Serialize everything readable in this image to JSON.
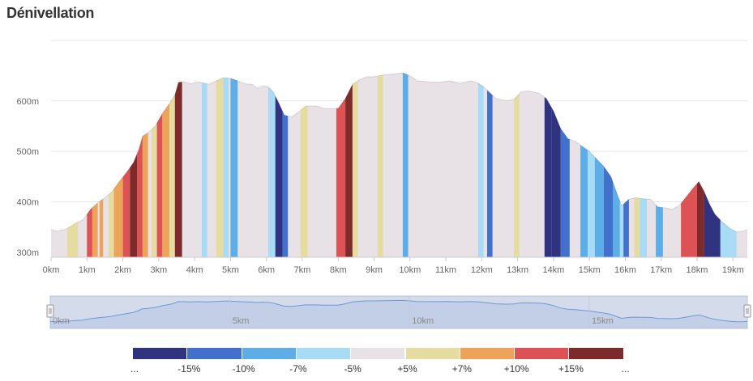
{
  "title": "Dénivellation",
  "chart_data": {
    "type": "area",
    "title": "Dénivellation",
    "xlabel": "",
    "ylabel": "",
    "xlim": [
      0,
      19.4
    ],
    "ylim": [
      290,
      720
    ],
    "yticks": [
      {
        "value": 300,
        "label": "300m"
      },
      {
        "value": 400,
        "label": "400m"
      },
      {
        "value": 500,
        "label": "500m"
      },
      {
        "value": 600,
        "label": "600m"
      }
    ],
    "xticks": [
      {
        "value": 0,
        "label": "0km"
      },
      {
        "value": 1,
        "label": "1km"
      },
      {
        "value": 2,
        "label": "2km"
      },
      {
        "value": 3,
        "label": "3km"
      },
      {
        "value": 4,
        "label": "4km"
      },
      {
        "value": 5,
        "label": "5km"
      },
      {
        "value": 6,
        "label": "6km"
      },
      {
        "value": 7,
        "label": "7km"
      },
      {
        "value": 8,
        "label": "8km"
      },
      {
        "value": 9,
        "label": "9km"
      },
      {
        "value": 10,
        "label": "10km"
      },
      {
        "value": 11,
        "label": "11km"
      },
      {
        "value": 12,
        "label": "12km"
      },
      {
        "value": 13,
        "label": "13km"
      },
      {
        "value": 14,
        "label": "14km"
      },
      {
        "value": 15,
        "label": "15km"
      },
      {
        "value": 16,
        "label": "16km"
      },
      {
        "value": 17,
        "label": "17km"
      },
      {
        "value": 18,
        "label": "18km"
      },
      {
        "value": 19,
        "label": "19km"
      }
    ],
    "grid": true,
    "profile": [
      [
        0,
        345
      ],
      [
        0.15,
        342
      ],
      [
        0.4,
        345
      ],
      [
        0.7,
        358
      ],
      [
        0.9,
        365
      ],
      [
        1.1,
        385
      ],
      [
        1.3,
        398
      ],
      [
        1.5,
        408
      ],
      [
        1.7,
        420
      ],
      [
        1.9,
        440
      ],
      [
        2.1,
        458
      ],
      [
        2.3,
        478
      ],
      [
        2.45,
        505
      ],
      [
        2.55,
        530
      ],
      [
        2.7,
        537
      ],
      [
        2.9,
        550
      ],
      [
        3.1,
        575
      ],
      [
        3.3,
        595
      ],
      [
        3.45,
        612
      ],
      [
        3.55,
        637
      ],
      [
        3.7,
        638
      ],
      [
        3.9,
        634
      ],
      [
        4.1,
        638
      ],
      [
        4.4,
        633
      ],
      [
        4.6,
        640
      ],
      [
        4.8,
        646
      ],
      [
        5.0,
        645
      ],
      [
        5.2,
        640
      ],
      [
        5.4,
        634
      ],
      [
        5.6,
        633
      ],
      [
        5.75,
        625
      ],
      [
        5.9,
        630
      ],
      [
        6.05,
        628
      ],
      [
        6.2,
        617
      ],
      [
        6.35,
        595
      ],
      [
        6.5,
        572
      ],
      [
        6.7,
        568
      ],
      [
        6.9,
        578
      ],
      [
        7.1,
        590
      ],
      [
        7.4,
        590
      ],
      [
        7.6,
        585
      ],
      [
        7.8,
        585
      ],
      [
        8.0,
        585
      ],
      [
        8.2,
        605
      ],
      [
        8.4,
        633
      ],
      [
        8.6,
        642
      ],
      [
        8.8,
        648
      ],
      [
        9.0,
        648
      ],
      [
        9.3,
        652
      ],
      [
        9.6,
        654
      ],
      [
        9.8,
        656
      ],
      [
        10.0,
        650
      ],
      [
        10.2,
        640
      ],
      [
        10.5,
        638
      ],
      [
        10.8,
        637
      ],
      [
        11.1,
        640
      ],
      [
        11.4,
        635
      ],
      [
        11.7,
        640
      ],
      [
        11.9,
        635
      ],
      [
        12.05,
        628
      ],
      [
        12.2,
        618
      ],
      [
        12.4,
        605
      ],
      [
        12.7,
        600
      ],
      [
        12.9,
        603
      ],
      [
        13.1,
        618
      ],
      [
        13.3,
        620
      ],
      [
        13.6,
        615
      ],
      [
        13.8,
        605
      ],
      [
        14.0,
        580
      ],
      [
        14.2,
        545
      ],
      [
        14.4,
        525
      ],
      [
        14.6,
        520
      ],
      [
        14.8,
        510
      ],
      [
        15.0,
        500
      ],
      [
        15.2,
        485
      ],
      [
        15.4,
        470
      ],
      [
        15.6,
        450
      ],
      [
        15.75,
        420
      ],
      [
        15.9,
        392
      ],
      [
        16.1,
        405
      ],
      [
        16.3,
        408
      ],
      [
        16.5,
        406
      ],
      [
        16.7,
        405
      ],
      [
        16.9,
        390
      ],
      [
        17.1,
        388
      ],
      [
        17.3,
        385
      ],
      [
        17.5,
        392
      ],
      [
        17.7,
        410
      ],
      [
        17.9,
        428
      ],
      [
        18.05,
        440
      ],
      [
        18.2,
        420
      ],
      [
        18.35,
        395
      ],
      [
        18.5,
        375
      ],
      [
        18.7,
        360
      ],
      [
        18.9,
        348
      ],
      [
        19.1,
        340
      ],
      [
        19.3,
        342
      ],
      [
        19.4,
        345
      ]
    ],
    "grade_segments": [
      [
        0.45,
        0.75,
        5
      ],
      [
        1.0,
        1.15,
        10
      ],
      [
        1.15,
        1.3,
        7
      ],
      [
        1.35,
        1.45,
        7
      ],
      [
        1.6,
        1.75,
        5
      ],
      [
        1.75,
        2.0,
        7
      ],
      [
        2.0,
        2.2,
        10
      ],
      [
        2.2,
        2.4,
        15
      ],
      [
        2.4,
        2.55,
        10
      ],
      [
        2.55,
        2.7,
        7
      ],
      [
        2.8,
        2.95,
        5
      ],
      [
        2.95,
        3.1,
        10
      ],
      [
        3.1,
        3.3,
        7
      ],
      [
        3.3,
        3.45,
        5
      ],
      [
        3.45,
        3.65,
        15
      ],
      [
        4.2,
        4.35,
        -5
      ],
      [
        4.6,
        4.8,
        5
      ],
      [
        4.8,
        4.95,
        -5
      ],
      [
        5.0,
        5.2,
        -7
      ],
      [
        6.05,
        6.25,
        -5
      ],
      [
        6.25,
        6.45,
        -15
      ],
      [
        6.45,
        6.6,
        -10
      ],
      [
        6.95,
        7.15,
        5
      ],
      [
        7.95,
        8.2,
        10
      ],
      [
        8.2,
        8.4,
        15
      ],
      [
        8.4,
        8.55,
        5
      ],
      [
        9.1,
        9.25,
        5
      ],
      [
        9.8,
        9.95,
        -7
      ],
      [
        11.9,
        12.05,
        -5
      ],
      [
        12.15,
        12.3,
        -10
      ],
      [
        12.9,
        13.05,
        5
      ],
      [
        13.75,
        13.95,
        -15
      ],
      [
        13.95,
        14.2,
        -15
      ],
      [
        14.2,
        14.45,
        -10
      ],
      [
        14.75,
        14.95,
        -7
      ],
      [
        14.95,
        15.15,
        -5
      ],
      [
        15.15,
        15.4,
        -7
      ],
      [
        15.4,
        15.65,
        -10
      ],
      [
        15.65,
        15.85,
        -7
      ],
      [
        15.85,
        15.95,
        -5
      ],
      [
        15.95,
        16.1,
        -10
      ],
      [
        16.25,
        16.4,
        5
      ],
      [
        16.4,
        16.6,
        -5
      ],
      [
        16.85,
        17.05,
        -7
      ],
      [
        17.55,
        18.0,
        10
      ],
      [
        18.0,
        18.2,
        15
      ],
      [
        18.2,
        18.65,
        -15
      ],
      [
        18.65,
        18.95,
        -5
      ],
      [
        18.95,
        19.1,
        -5
      ]
    ],
    "legend": [
      {
        "label": "...",
        "color": "#2f3380"
      },
      {
        "label": "-15%",
        "color": "#4171cc"
      },
      {
        "label": "-10%",
        "color": "#5dade6"
      },
      {
        "label": "-7%",
        "color": "#a8dcf6"
      },
      {
        "label": "-5%",
        "color": "#e8e1e6"
      },
      {
        "label": "+5%",
        "color": "#e6dca0"
      },
      {
        "label": "+7%",
        "color": "#eea35a"
      },
      {
        "label": "+10%",
        "color": "#dd5355"
      },
      {
        "label": "+15%",
        "color": "#7e2a2a"
      },
      {
        "label": "...",
        "color": ""
      }
    ],
    "grade_colors": {
      "-15": "#2f3380",
      "-10": "#4171cc",
      "-7": "#5dade6",
      "-5": "#a8dcf6",
      "0": "#e8e1e6",
      "5": "#e6dca0",
      "7": "#eea35a",
      "10": "#dd5355",
      "15": "#7e2a2a"
    },
    "navigator": {
      "xticks": [
        {
          "value": 0,
          "label": "0km"
        },
        {
          "value": 5,
          "label": "5km"
        },
        {
          "value": 10,
          "label": "10km"
        },
        {
          "value": 15,
          "label": "15km"
        }
      ]
    }
  }
}
